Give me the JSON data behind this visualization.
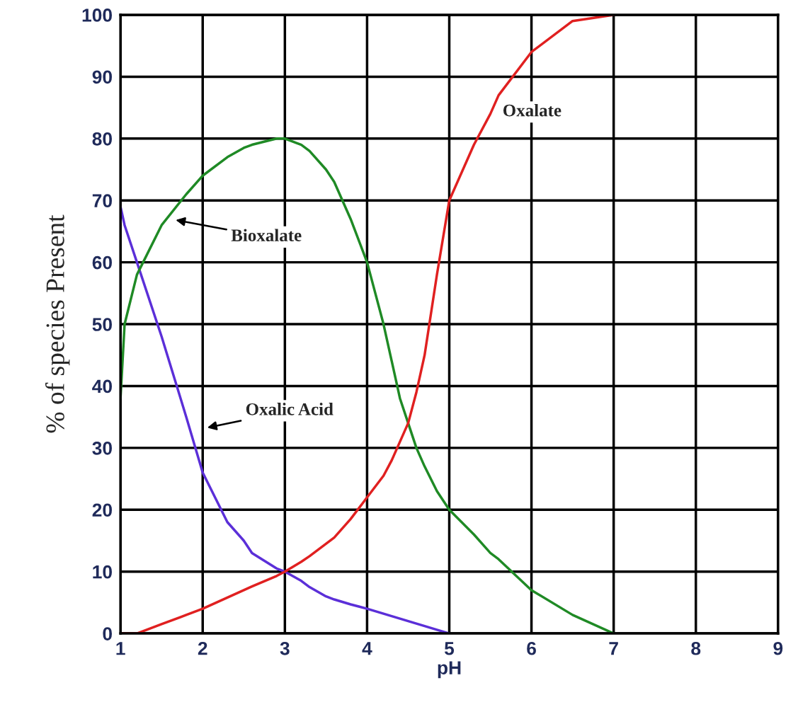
{
  "chart_data": {
    "type": "line",
    "xlabel": "pH",
    "ylabel": "% of species Present",
    "x": [
      1,
      1.05,
      1.2,
      1.5,
      1.8,
      2,
      2.3,
      2.5,
      2.6,
      2.9,
      3,
      3.2,
      3.3,
      3.5,
      3.6,
      3.8,
      4,
      4.2,
      4.3,
      4.4,
      4.5,
      4.6,
      4.7,
      4.85,
      5,
      5.3,
      5.5,
      5.6,
      6,
      6.5,
      7
    ],
    "series": [
      {
        "color": "#5b2fd8",
        "values": [
          69,
          66,
          60,
          48,
          35,
          26,
          18,
          15,
          13,
          10.5,
          10,
          8.5,
          7.5,
          6,
          5.5,
          4.7,
          4,
          3.2,
          2.8,
          2.4,
          2,
          1.6,
          1.2,
          0.6,
          0,
          null,
          null,
          null,
          null,
          null,
          null
        ]
      },
      {
        "color": "#1f8a25",
        "values": [
          38,
          50,
          58,
          66,
          71,
          74,
          77,
          78.5,
          79,
          80,
          80,
          79,
          78,
          75,
          73,
          67,
          60,
          50,
          44,
          38,
          34,
          30,
          27,
          23,
          20,
          16,
          13,
          12,
          7,
          3,
          0
        ]
      },
      {
        "color": "#e02020",
        "values": [
          0,
          0,
          0,
          1.5,
          3,
          4,
          5.8,
          7,
          7.6,
          9.3,
          10,
          11.6,
          12.5,
          14.5,
          15.5,
          18.5,
          22,
          25.5,
          28,
          31,
          34,
          39,
          45,
          58,
          70,
          79,
          84,
          87,
          94,
          99,
          100
        ]
      }
    ],
    "xlim": [
      1,
      9
    ],
    "xticks": [
      1,
      2,
      3,
      4,
      5,
      6,
      7,
      8,
      9
    ],
    "ylim": [
      0,
      100
    ],
    "yticks": [
      0,
      10,
      20,
      30,
      40,
      50,
      60,
      70,
      80,
      90,
      100
    ],
    "grid": true,
    "annotations": [
      "Oxalate",
      "Bioxalate",
      "Oxalic Acid"
    ]
  }
}
